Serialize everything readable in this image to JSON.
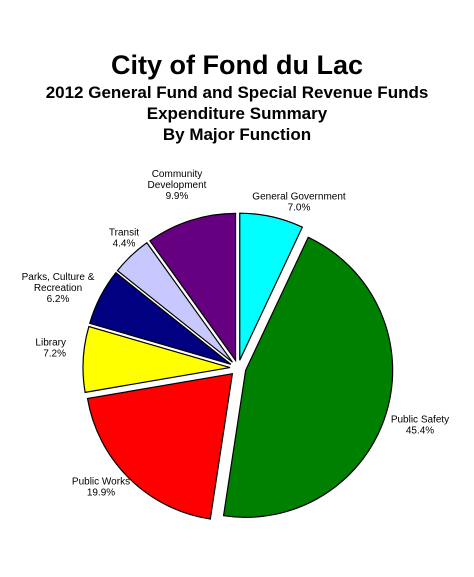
{
  "titles": {
    "line1": "City of Fond du Lac",
    "line2": "2012 General Fund and Special Revenue Funds",
    "line3": "Expenditure Summary",
    "line4": "By Major Function"
  },
  "chart_data": {
    "type": "pie",
    "exploded": true,
    "start": "12 o'clock, clockwise",
    "slices": [
      {
        "label": [
          "General Government"
        ],
        "value_label": "7.0%",
        "value": 7.0,
        "color": "#00FFFF"
      },
      {
        "label": [
          "Public Safety"
        ],
        "value_label": "45.4%",
        "value": 45.4,
        "color": "#008000"
      },
      {
        "label": [
          "Public Works"
        ],
        "value_label": "19.9%",
        "value": 19.9,
        "color": "#FF0000"
      },
      {
        "label": [
          "Library"
        ],
        "value_label": "7.2%",
        "value": 7.2,
        "color": "#FFFF00"
      },
      {
        "label": [
          "Parks, Culture &",
          "Recreation"
        ],
        "value_label": "6.2%",
        "value": 6.2,
        "color": "#000080"
      },
      {
        "label": [
          "Transit"
        ],
        "value_label": "4.4%",
        "value": 4.4,
        "color": "#C8C8FF"
      },
      {
        "label": [
          "Community",
          "Development"
        ],
        "value_label": "9.9%",
        "value": 9.9,
        "color": "#660080"
      }
    ]
  }
}
